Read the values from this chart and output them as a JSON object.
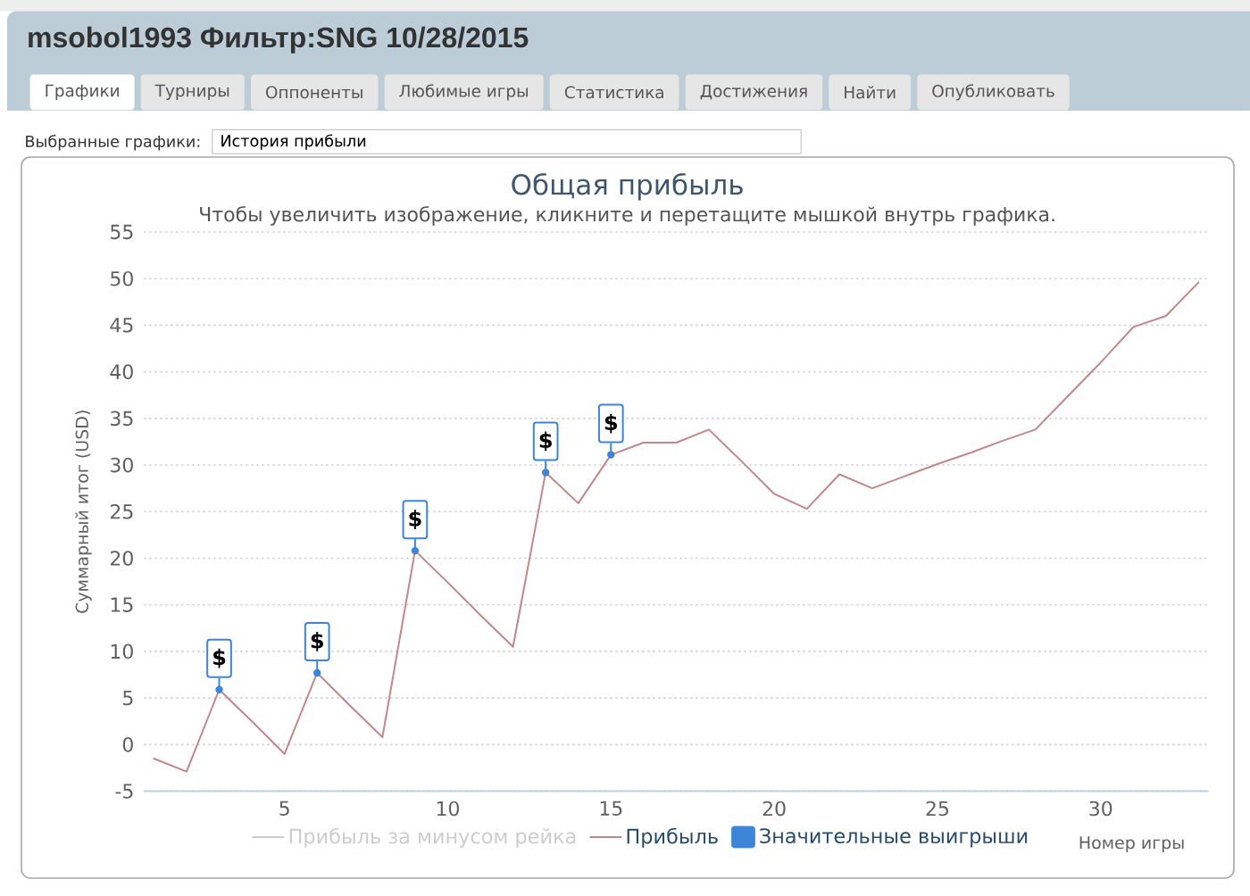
{
  "chart_data": {
    "type": "line",
    "title": "Общая прибыль",
    "subtitle": "Чтобы увеличить изображение, кликните и перетащите мышкой внутрь графика.",
    "xlabel": "Номер игры",
    "ylabel": "Суммарный итог (USD)",
    "annotations": [
      "msobol1993 Фильтр:SNG 10/28/2015",
      "Графики",
      "Турниры",
      "Оппоненты",
      "Любимые игры",
      "Статистика",
      "Достижения",
      "Найти",
      "Опубликовать",
      "Выбранные графики:",
      "История прибыли"
    ],
    "x": [
      1,
      2,
      3,
      4,
      5,
      6,
      7,
      8,
      9,
      10,
      11,
      12,
      13,
      14,
      15,
      16,
      17,
      18,
      19,
      20,
      21,
      22,
      23,
      24,
      25,
      26,
      27,
      28,
      29,
      30,
      31,
      32,
      33
    ],
    "series": [
      {
        "name": "Прибыль за минусом рейка",
        "color": "#cccccc",
        "values": [
          null,
          null,
          null,
          null,
          null,
          null,
          null,
          null,
          null,
          null,
          null,
          null,
          null,
          null,
          null,
          null,
          null,
          null,
          null,
          null,
          null,
          null,
          null,
          null,
          null,
          null,
          null,
          null,
          null,
          null,
          null,
          null,
          null
        ]
      },
      {
        "name": "Прибыль",
        "color": "#c4868a",
        "values": [
          -1.5,
          -2.9,
          5.9,
          2.5,
          -1.0,
          7.7,
          4.2,
          0.8,
          20.8,
          17.4,
          13.9,
          10.5,
          29.2,
          25.9,
          31.1,
          32.4,
          32.4,
          33.8,
          30.4,
          26.9,
          25.3,
          29.0,
          27.5,
          28.8,
          30.1,
          31.3,
          32.6,
          33.8,
          37.4,
          41.0,
          44.8,
          46.0,
          49.6
        ]
      },
      {
        "name": "Значительные выигрыши",
        "type": "scatter",
        "color": "#3d85d8",
        "x": [
          3,
          6,
          9,
          13,
          15
        ],
        "values": [
          5.9,
          7.7,
          20.8,
          29.2,
          31.1
        ],
        "value_labels": [
          "$",
          "$",
          "$",
          "$",
          "$"
        ]
      }
    ],
    "xlim": [
      0.7,
      33.3
    ],
    "ylim": [
      -5,
      55
    ],
    "xticks": [
      5,
      10,
      15,
      20,
      25,
      30
    ],
    "yticks": [
      -5,
      0,
      5,
      10,
      15,
      20,
      25,
      30,
      35,
      40,
      45,
      50,
      55
    ],
    "grid": "y",
    "legend": "bottom"
  }
}
